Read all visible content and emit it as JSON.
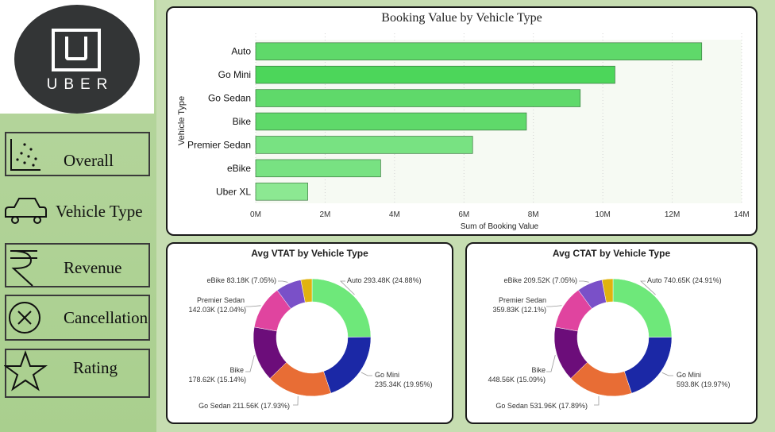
{
  "logo": {
    "text": "UBER"
  },
  "nav": {
    "items": [
      {
        "label": "Overall",
        "icon": "scatter-plot-icon"
      },
      {
        "label": "Vehicle Type",
        "icon": "car-icon"
      },
      {
        "label": "Revenue",
        "icon": "rupee-icon"
      },
      {
        "label": "Cancellation",
        "icon": "circle-x-icon"
      },
      {
        "label": "Rating",
        "icon": "star-icon"
      }
    ]
  },
  "colors": {
    "sidebar": "#b7d69f",
    "bar_fill": "#5fd96a",
    "bar_highlight": "#4cd65a",
    "donut": [
      "#6ee87a",
      "#1b28a6",
      "#e86d35",
      "#6c0d7a",
      "#e0449f",
      "#7a50c8",
      "#e0b30f"
    ]
  },
  "chart_data": [
    {
      "type": "bar",
      "orientation": "horizontal",
      "title": "Booking Value by Vehicle Type",
      "xlabel": "Sum of Booking Value",
      "ylabel": "Vehicle Type",
      "categories": [
        "Auto",
        "Go Mini",
        "Go Sedan",
        "Bike",
        "Premier Sedan",
        "eBike",
        "Uber XL"
      ],
      "values": [
        12.85,
        10.35,
        9.35,
        7.8,
        6.25,
        3.6,
        1.5
      ],
      "value_unit": "M",
      "xlim": [
        0,
        14
      ],
      "xticks": [
        "0M",
        "2M",
        "4M",
        "6M",
        "8M",
        "10M",
        "12M",
        "14M"
      ],
      "grid": true
    },
    {
      "type": "pie",
      "donut": true,
      "title": "Avg VTAT by Vehicle Type",
      "categories": [
        "Auto",
        "Go Mini",
        "Go Sedan",
        "Bike",
        "Premier Sedan",
        "eBike",
        "Uber XL"
      ],
      "values": [
        293.48,
        235.34,
        211.56,
        178.62,
        142.03,
        83.18,
        36.3
      ],
      "labels": [
        {
          "line1": "Auto 293.48K (24.88%)",
          "line2": ""
        },
        {
          "line1": "Go Mini",
          "line2": "235.34K (19.95%)"
        },
        {
          "line1": "Go Sedan 211.56K (17.93%)",
          "line2": ""
        },
        {
          "line1": "Bike",
          "line2": "178.62K (15.14%)"
        },
        {
          "line1": "Premier Sedan",
          "line2": "142.03K (12.04%)"
        },
        {
          "line1": "eBike 83.18K (7.05%)",
          "line2": ""
        }
      ]
    },
    {
      "type": "pie",
      "donut": true,
      "title": "Avg CTAT by Vehicle Type",
      "categories": [
        "Auto",
        "Go Mini",
        "Go Sedan",
        "Bike",
        "Premier Sedan",
        "eBike",
        "Uber XL"
      ],
      "values": [
        740.65,
        593.8,
        531.96,
        448.56,
        359.83,
        209.52,
        89.7
      ],
      "labels": [
        {
          "line1": "Auto 740.65K (24.91%)",
          "line2": ""
        },
        {
          "line1": "Go Mini",
          "line2": "593.8K (19.97%)"
        },
        {
          "line1": "Go Sedan 531.96K (17.89%)",
          "line2": ""
        },
        {
          "line1": "Bike",
          "line2": "448.56K (15.09%)"
        },
        {
          "line1": "Premier Sedan",
          "line2": "359.83K (12.1%)"
        },
        {
          "line1": "eBike 209.52K (7.05%)",
          "line2": ""
        }
      ]
    }
  ]
}
